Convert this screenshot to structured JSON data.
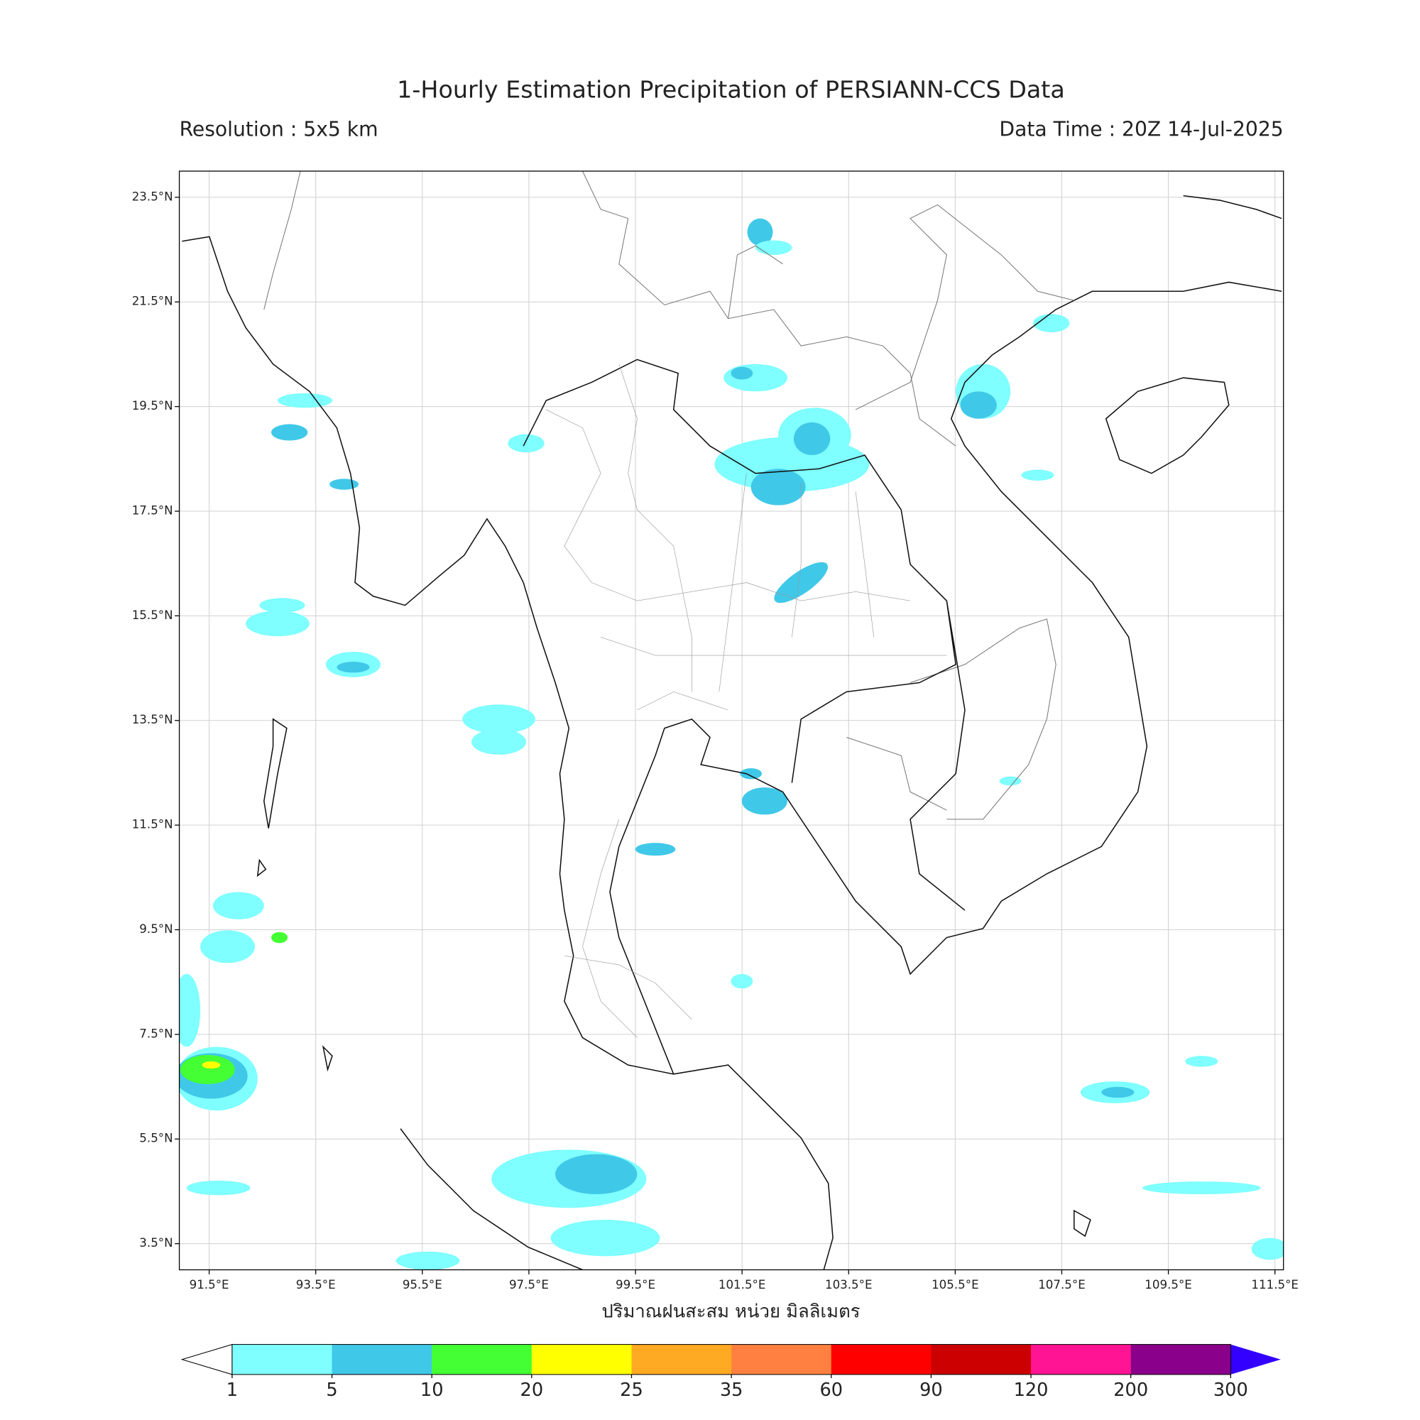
{
  "title": "1-Hourly Estimation Precipitation of PERSIANN-CCS Data",
  "resolution": "Resolution : 5x5 km",
  "data_time": "Data Time : 20Z 14-Jul-2025",
  "map": {
    "xlim": [
      90.94,
      111.66
    ],
    "ylim": [
      3,
      24
    ],
    "xticks": [
      {
        "value": 91.5,
        "label": "91.5°E"
      },
      {
        "value": 93.5,
        "label": "93.5°E"
      },
      {
        "value": 95.5,
        "label": "95.5°E"
      },
      {
        "value": 97.5,
        "label": "97.5°E"
      },
      {
        "value": 99.5,
        "label": "99.5°E"
      },
      {
        "value": 101.5,
        "label": "101.5°E"
      },
      {
        "value": 103.5,
        "label": "103.5°E"
      },
      {
        "value": 105.5,
        "label": "105.5°E"
      },
      {
        "value": 107.5,
        "label": "107.5°E"
      },
      {
        "value": 109.5,
        "label": "109.5°E"
      },
      {
        "value": 111.5,
        "label": "111.5°E"
      }
    ],
    "yticks": [
      {
        "value": 23.5,
        "label": "23.5°N"
      },
      {
        "value": 21.5,
        "label": "21.5°N"
      },
      {
        "value": 19.5,
        "label": "19.5°N"
      },
      {
        "value": 17.5,
        "label": "17.5°N"
      },
      {
        "value": 15.5,
        "label": "15.5°N"
      },
      {
        "value": 13.5,
        "label": "13.5°N"
      },
      {
        "value": 11.5,
        "label": "11.5°N"
      },
      {
        "value": 9.5,
        "label": "9.5°N"
      },
      {
        "value": 7.5,
        "label": "7.5°N"
      },
      {
        "value": 5.5,
        "label": "5.5°N"
      },
      {
        "value": 3.5,
        "label": "3.5°N"
      }
    ],
    "grid": true,
    "xlabel": "ปริมาณฝนสะสม หน่วย มิลลิเมตร"
  },
  "colorbar": {
    "bounds": [
      1,
      5,
      10,
      20,
      25,
      35,
      60,
      90,
      120,
      200,
      300
    ],
    "colors": [
      "#7fffff",
      "#40c8e8",
      "#44ff33",
      "#ffff00",
      "#ffaa22",
      "#ff8040",
      "#ff0000",
      "#cc0000",
      "#ff1493",
      "#8b008b"
    ],
    "under_color": "#ffffff",
    "over_color": "#3300ff"
  }
}
